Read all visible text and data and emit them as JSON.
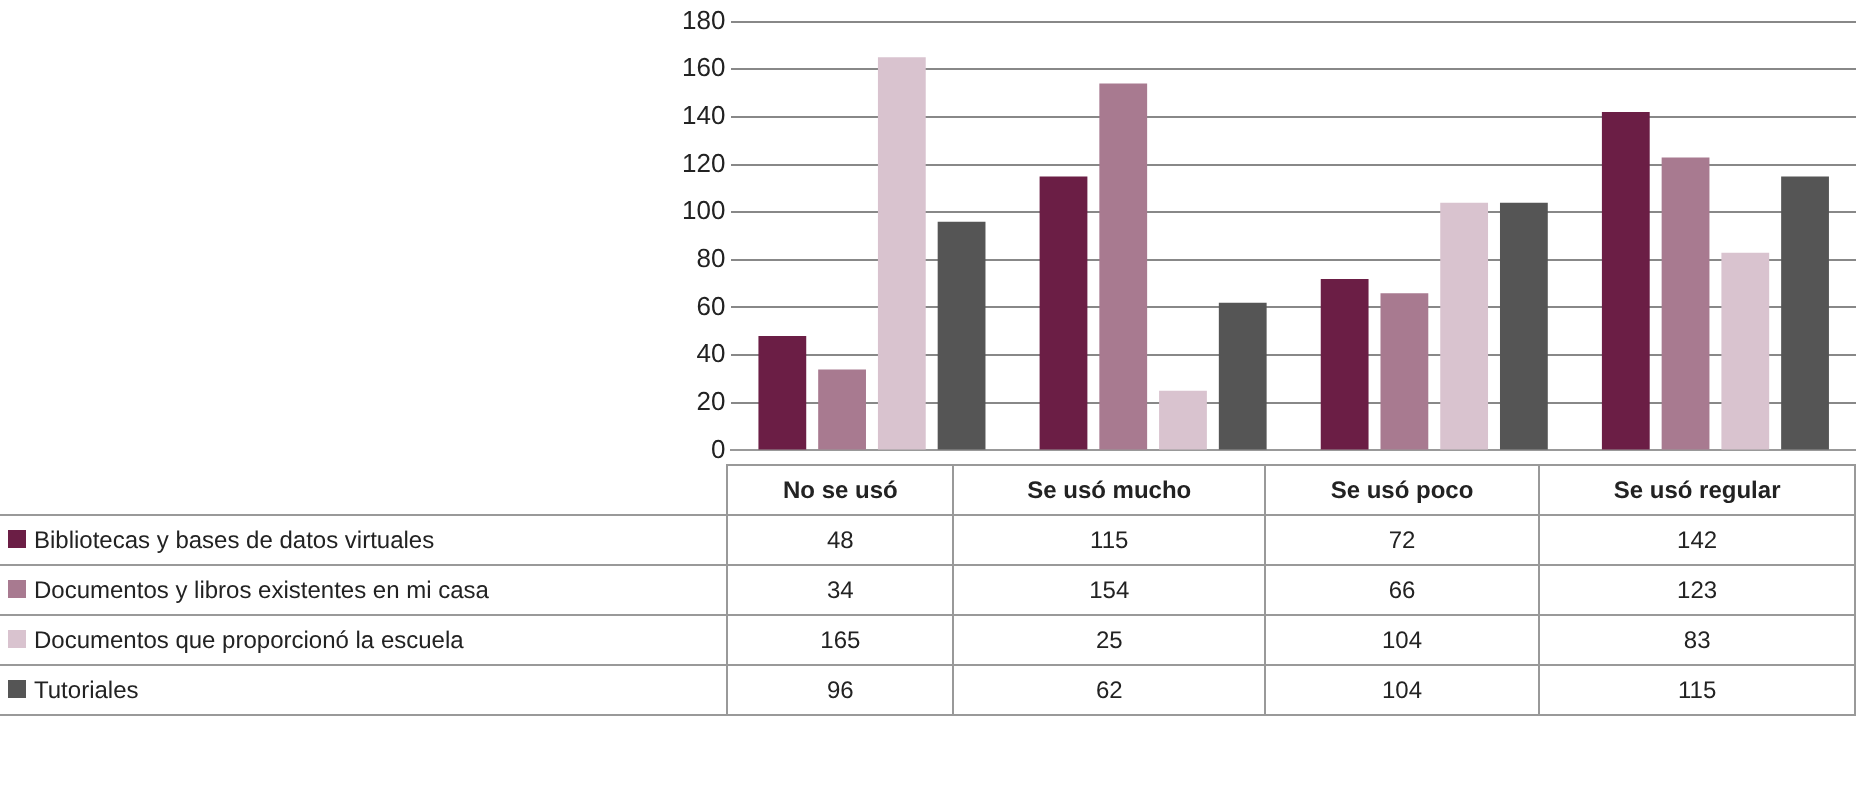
{
  "chart_data": {
    "type": "bar",
    "categories": [
      "No se usó",
      "Se usó mucho",
      "Se usó poco",
      "Se usó regular"
    ],
    "series": [
      {
        "name": "Bibliotecas y bases de datos virtuales",
        "color": "#6b1e45",
        "values": [
          48,
          115,
          72,
          142
        ]
      },
      {
        "name": "Documentos y libros existentes en mi casa",
        "color": "#a87a90",
        "values": [
          34,
          154,
          66,
          123
        ]
      },
      {
        "name": "Documentos que proporcionó la escuela",
        "color": "#d9c3cf",
        "values": [
          165,
          25,
          104,
          83
        ]
      },
      {
        "name": "Tutoriales",
        "color": "#555555",
        "values": [
          96,
          62,
          104,
          115
        ]
      }
    ],
    "ylim": [
      0,
      180
    ],
    "yticks": [
      0,
      20,
      40,
      60,
      80,
      100,
      120,
      140,
      160,
      180
    ],
    "grid": "y",
    "legend": "bottom",
    "data_labels": true
  }
}
